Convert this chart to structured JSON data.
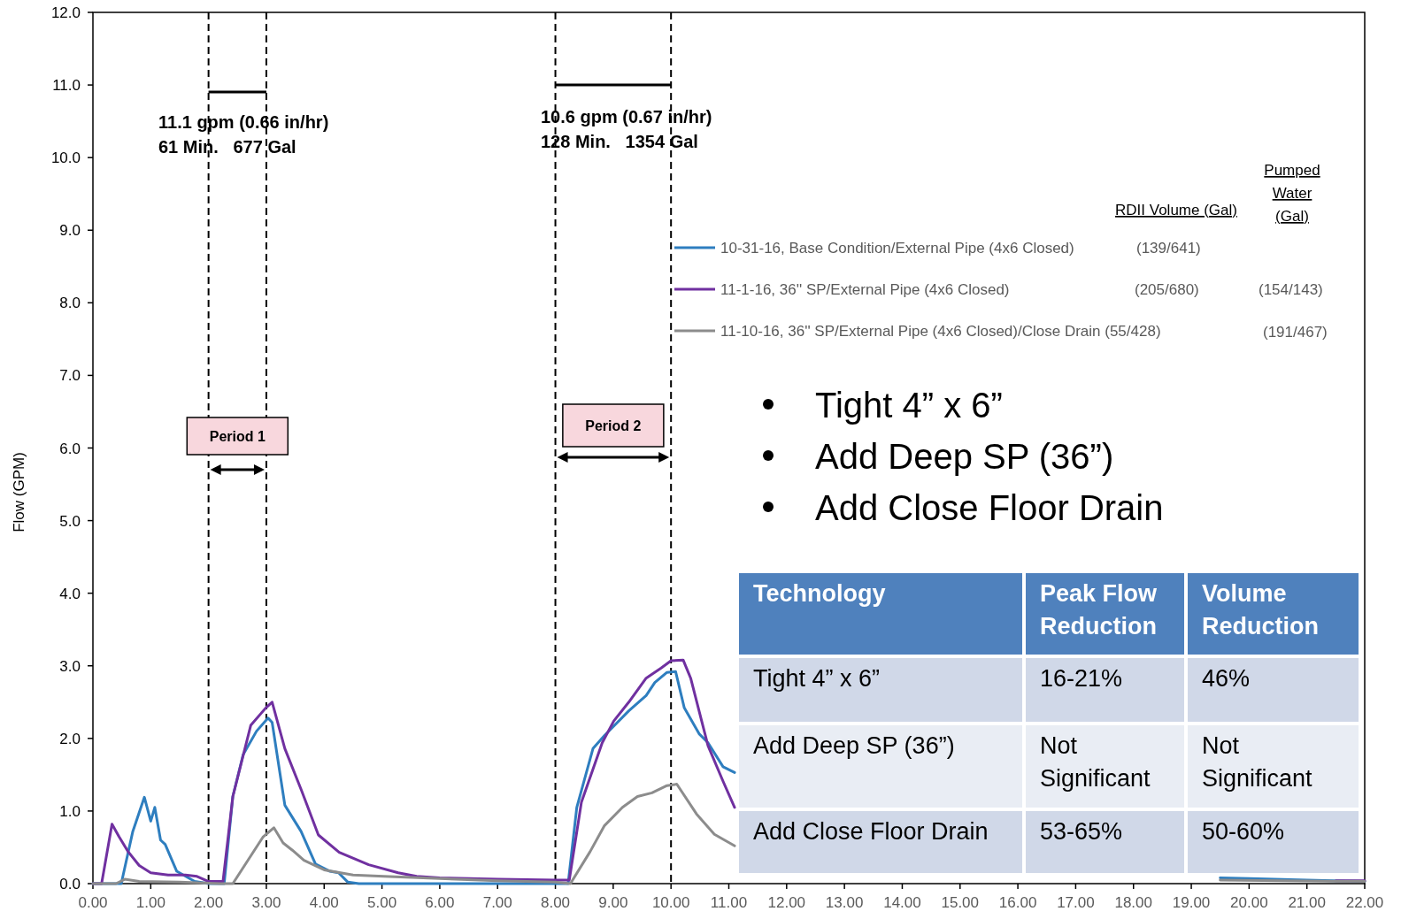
{
  "chart_data": [
    {
      "type": "line",
      "ylabel": "Flow (GPM)",
      "legend": "top right",
      "xlim": [
        0,
        22
      ],
      "ylim": [
        0,
        12
      ],
      "xticks": [
        {
          "value": 0,
          "label": "0.00"
        },
        {
          "value": 1,
          "label": "1.00"
        },
        {
          "value": 2,
          "label": "2.00"
        },
        {
          "value": 3,
          "label": "3.00"
        },
        {
          "value": 4,
          "label": "4.00"
        },
        {
          "value": 5,
          "label": "5.00"
        },
        {
          "value": 6,
          "label": "6.00"
        },
        {
          "value": 7,
          "label": "7.00"
        },
        {
          "value": 8,
          "label": "8.00"
        },
        {
          "value": 9,
          "label": "9.00"
        },
        {
          "value": 10,
          "label": "10.00"
        },
        {
          "value": 11,
          "label": "11.00"
        },
        {
          "value": 12,
          "label": "12.00"
        },
        {
          "value": 13,
          "label": "13.00"
        },
        {
          "value": 14,
          "label": "14.00"
        },
        {
          "value": 15,
          "label": "15.00"
        },
        {
          "value": 16,
          "label": "16.00"
        },
        {
          "value": 17,
          "label": "17.00"
        },
        {
          "value": 18,
          "label": "18.00"
        },
        {
          "value": 19,
          "label": "19.00"
        },
        {
          "value": 20,
          "label": "20.00"
        },
        {
          "value": 21,
          "label": "21.00"
        },
        {
          "value": 22,
          "label": "22.00"
        }
      ],
      "yticks": [
        {
          "value": 0,
          "label": "0.0"
        },
        {
          "value": 1,
          "label": "1.0"
        },
        {
          "value": 2,
          "label": "2.0"
        },
        {
          "value": 3,
          "label": "3.0"
        },
        {
          "value": 4,
          "label": "4.0"
        },
        {
          "value": 5,
          "label": "5.0"
        },
        {
          "value": 6,
          "label": "6.0"
        },
        {
          "value": 7,
          "label": "7.0"
        },
        {
          "value": 8,
          "label": "8.0"
        },
        {
          "value": 9,
          "label": "9.0"
        },
        {
          "value": 10,
          "label": "10.0"
        },
        {
          "value": 11,
          "label": "11.0"
        },
        {
          "value": 12,
          "label": "12.0"
        }
      ],
      "series": [
        {
          "name": "10-31-16, Base Condition/External Pipe (4x6 Closed)",
          "color": "#2e7ebf",
          "x": [
            0,
            0.49,
            0.69,
            0.89,
            1.0,
            1.07,
            1.17,
            1.25,
            1.45,
            1.76,
            2.0,
            2.27,
            2.42,
            2.6,
            2.83,
            3.03,
            3.1,
            3.32,
            3.6,
            3.85,
            4.1,
            4.25,
            4.41,
            4.6,
            6,
            8,
            8.22,
            8.37,
            8.65,
            8.85,
            9.27,
            9.57,
            9.72,
            9.93,
            10.08,
            10.23,
            10.49,
            10.64,
            10.9,
            11.1,
            15,
            19.5,
            20,
            21,
            22
          ],
          "values": [
            0,
            0,
            0.72,
            1.19,
            0.86,
            1.05,
            0.6,
            0.54,
            0.17,
            0.03,
            0,
            0,
            1.2,
            1.78,
            2.1,
            2.28,
            2.22,
            1.08,
            0.72,
            0.27,
            0.17,
            0.15,
            0.02,
            0,
            0,
            0,
            0,
            1.05,
            1.86,
            2.04,
            2.38,
            2.59,
            2.77,
            2.91,
            2.92,
            2.42,
            2.06,
            1.94,
            1.61,
            1.53,
            null,
            0.08,
            0.07,
            0.05,
            0.03
          ]
        },
        {
          "name": "11-1-16, 36'' SP/External Pipe (4x6 Closed)",
          "color": "#7030a0",
          "x": [
            0,
            0.15,
            0.33,
            0.45,
            0.6,
            0.8,
            1.0,
            1.3,
            1.6,
            1.8,
            2.0,
            2.25,
            2.42,
            2.73,
            2.99,
            3.1,
            3.32,
            3.61,
            3.9,
            4.26,
            4.77,
            5.28,
            5.6,
            6,
            7,
            8,
            8.24,
            8.45,
            8.81,
            9.01,
            9.27,
            9.57,
            9.83,
            10.0,
            10.21,
            10.34,
            10.64,
            10.9,
            11.1,
            15,
            21.5,
            22
          ],
          "values": [
            0,
            0,
            0.82,
            0.65,
            0.45,
            0.25,
            0.15,
            0.12,
            0.12,
            0.1,
            0.03,
            0.03,
            1.2,
            2.18,
            2.42,
            2.5,
            1.86,
            1.28,
            0.67,
            0.43,
            0.26,
            0.15,
            0.1,
            0.08,
            0.06,
            0.05,
            0.05,
            1.12,
            1.94,
            2.24,
            2.5,
            2.83,
            2.97,
            3.07,
            3.08,
            2.83,
            1.9,
            1.41,
            1.05,
            null,
            0.04,
            0.04
          ]
        },
        {
          "name": "11-10-16, 36'' SP/External Pipe (4x6 Closed)/Close Drain (55/428)",
          "color": "#8c8c8c",
          "x": [
            0,
            0.4,
            0.55,
            0.8,
            1.5,
            2.2,
            2.42,
            2.68,
            2.94,
            3.13,
            3.29,
            3.45,
            3.65,
            4.0,
            4.5,
            5.03,
            6,
            7,
            8,
            8.26,
            8.6,
            8.85,
            9.16,
            9.42,
            9.67,
            9.93,
            10.1,
            10.44,
            10.75,
            11.1,
            15,
            19.5,
            22
          ],
          "values": [
            0,
            0,
            0.06,
            0.03,
            0.02,
            0,
            0,
            0.32,
            0.64,
            0.77,
            0.56,
            0.46,
            0.32,
            0.19,
            0.12,
            0.1,
            0.07,
            0.04,
            0.02,
            0,
            0.44,
            0.8,
            1.05,
            1.2,
            1.25,
            1.35,
            1.37,
            0.96,
            0.68,
            0.52,
            null,
            0.05,
            0.03
          ]
        }
      ],
      "ref_lines": [
        {
          "axis": "x",
          "value": 2,
          "line_style": "dashed"
        },
        {
          "axis": "x",
          "value": 3,
          "line_style": "dashed"
        },
        {
          "axis": "x",
          "value": 8,
          "line_style": "dashed"
        },
        {
          "axis": "x",
          "value": 10,
          "line_style": "dashed"
        }
      ],
      "annotations": [
        "11.1 gpm (0.66 in/hr)",
        "61 Min.   677 Gal",
        "10.6 gpm (0.67 in/hr)",
        "128 Min.   1354 Gal",
        "RDII Volume (Gal)",
        "Pumped Water (Gal)",
        "(139/641)",
        "(205/680)",
        "(154/143)",
        "(191/467)",
        "Tight 4” x 6”",
        "Add Deep SP (36”)",
        "Add Close Floor Drain",
        "Period 1",
        "Period 2"
      ]
    },
    {
      "type": "other",
      "annotations": [
        "Technology",
        "Peak Flow Reduction",
        "Volume Reduction",
        "Tight 4” x 6”",
        "16-21%",
        "46%",
        "Add Deep SP (36”)",
        "Not Significant",
        "Not Significant",
        "Add Close Floor Drain",
        "53-65%",
        "50-60%"
      ]
    }
  ]
}
